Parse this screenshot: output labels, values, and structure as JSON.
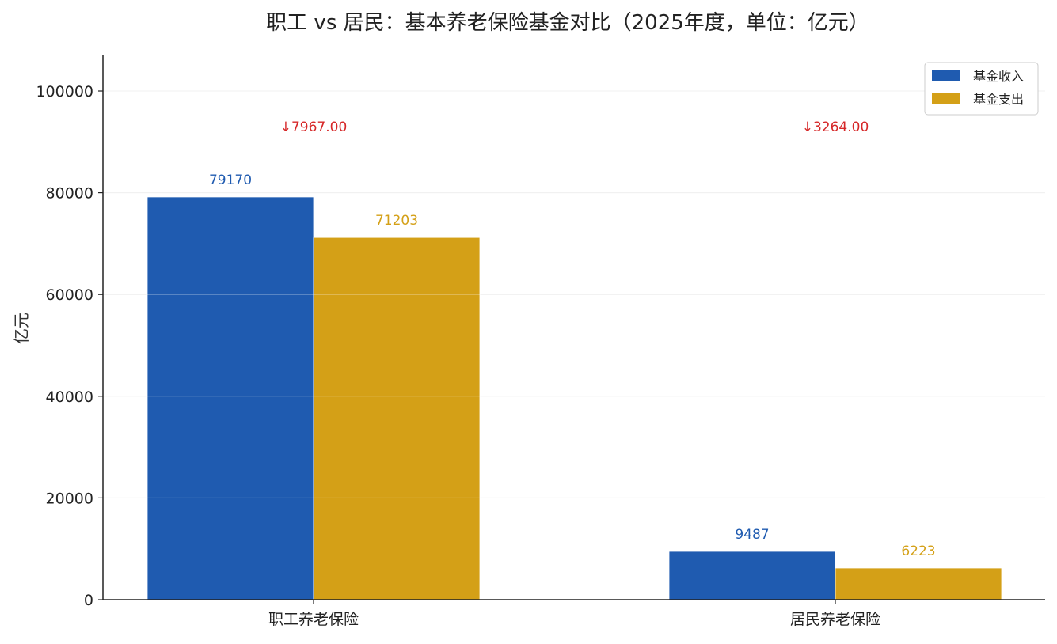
{
  "chart_data": {
    "type": "bar",
    "title": "职工 vs 居民：基本养老保险基金对比（2025年度，单位：亿元）",
    "xlabel": "",
    "ylabel": "亿元",
    "categories": [
      "职工养老保险",
      "居民养老保险"
    ],
    "series": [
      {
        "name": "基金收入",
        "color": "#1f5bb0",
        "values": [
          79170,
          9487
        ],
        "labels": [
          "79170",
          "9487"
        ]
      },
      {
        "name": "基金支出",
        "color": "#d4a017",
        "values": [
          71203,
          6223
        ],
        "labels": [
          "71203",
          "6223"
        ]
      }
    ],
    "annotations": [
      {
        "category": "职工养老保险",
        "text": "↓7967.00",
        "color": "#d62728"
      },
      {
        "category": "居民养老保险",
        "text": "↓3264.00",
        "color": "#d62728"
      }
    ],
    "ylim": [
      0,
      107000
    ],
    "yticks": [
      0,
      20000,
      40000,
      60000,
      80000,
      100000
    ],
    "ytick_labels": [
      "0",
      "20000",
      "40000",
      "60000",
      "80000",
      "100000"
    ],
    "grid": true,
    "legend_position": "top-right"
  }
}
